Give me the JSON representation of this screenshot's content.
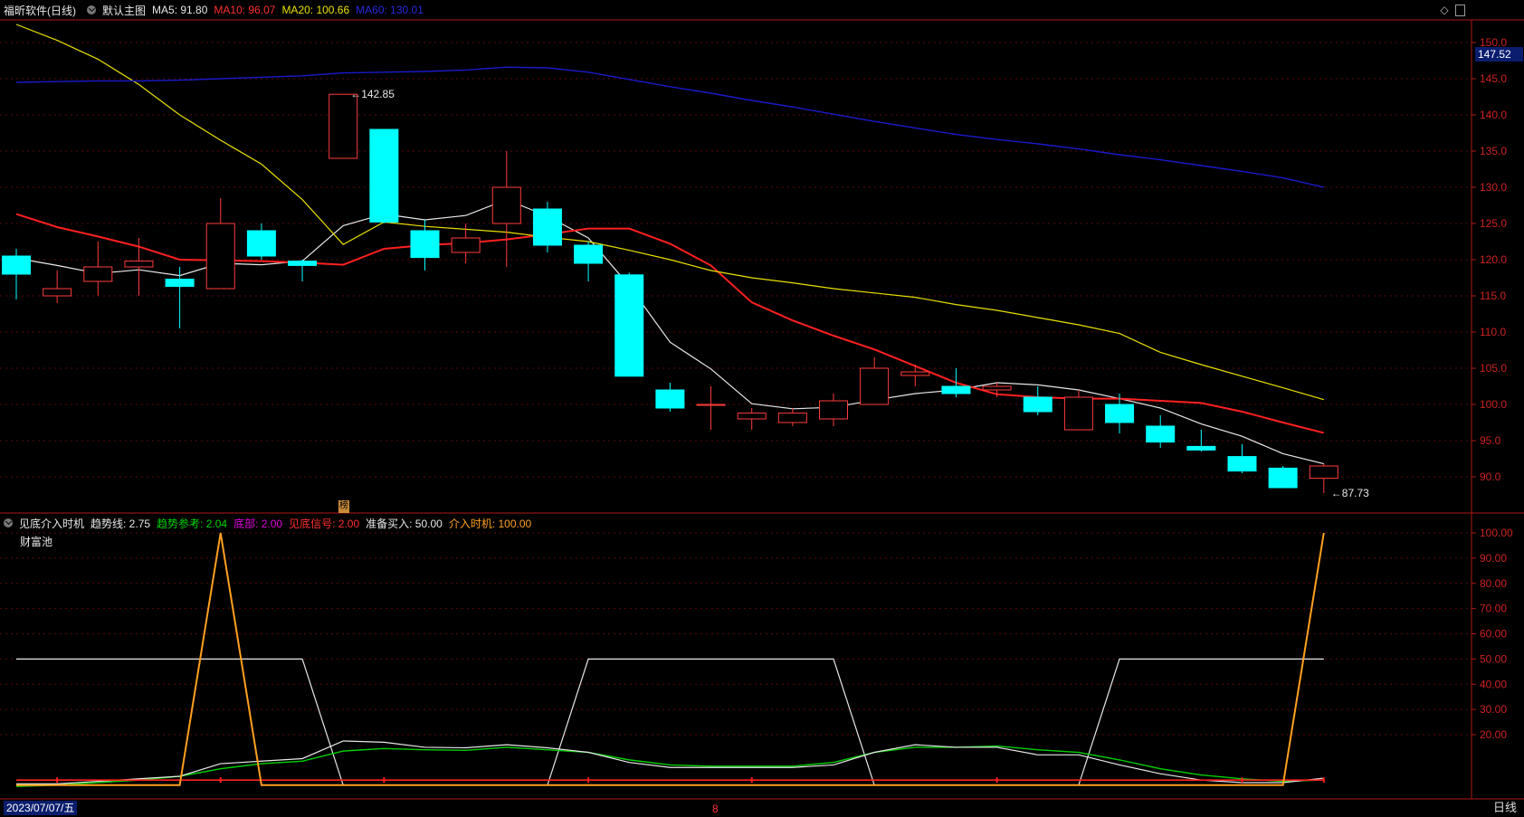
{
  "header": {
    "stock_title": "福昕软件(日线)",
    "main_indicator": "默认主图",
    "ma5": "MA5: 91.80",
    "ma10": "MA10: 96.07",
    "ma20": "MA20: 100.66",
    "ma60": "MA60: 130.01"
  },
  "sub_header": {
    "indicator_name": "见底介入时机",
    "trend": "趋势线: 2.75",
    "trend_ref": "趋势参考: 2.04",
    "bottom": "底部: 2.00",
    "bottom_signal": "见底信号: 2.00",
    "prepare_buy": "准备买入: 50.00",
    "entry_time": "介入时机: 100.00",
    "pool_label": "财富池"
  },
  "price_box": "147.52",
  "date_box": "2023/07/07/五",
  "month_marker": "8",
  "period_label": "日线",
  "marker_char": "榜",
  "colors": {
    "up": "#ff3b3b",
    "down": "#00ffff",
    "ma5": "#e8e8e8",
    "ma10": "#ff2020",
    "ma20": "#e8e000",
    "ma60": "#1a1acc",
    "trend": "#e8e8e8",
    "trend_ref": "#00d000",
    "bottom": "#e000e0",
    "bottom_signal": "#ff2020",
    "prepare_buy": "#e8e8e8",
    "entry": "#ffa020"
  },
  "chart_data": [
    {
      "type": "candlestick",
      "title": "福昕软件(日线)",
      "ylim": [
        86,
        152
      ],
      "y_ticks": [
        "150.0",
        "145.0",
        "140.0",
        "135.0",
        "130.0",
        "125.0",
        "120.0",
        "115.0",
        "110.0",
        "105.0",
        "100.0",
        "95.0",
        "90.0"
      ],
      "annotations": [
        {
          "text": "142.85",
          "index": 8,
          "value": 142.85
        },
        {
          "text": "87.73",
          "index": 32,
          "value": 87.73
        }
      ],
      "candles": [
        {
          "o": 120.5,
          "c": 118.0,
          "h": 121.5,
          "l": 114.5
        },
        {
          "o": 115.0,
          "c": 116.0,
          "h": 118.5,
          "l": 114.0
        },
        {
          "o": 117.0,
          "c": 119.0,
          "h": 122.5,
          "l": 115.0
        },
        {
          "o": 119.0,
          "c": 119.8,
          "h": 123.0,
          "l": 115.0
        },
        {
          "o": 117.3,
          "c": 116.3,
          "h": 119.0,
          "l": 110.5
        },
        {
          "o": 116.0,
          "c": 125.0,
          "h": 128.5,
          "l": 116.0
        },
        {
          "o": 124.0,
          "c": 120.5,
          "h": 125.0,
          "l": 120.0
        },
        {
          "o": 119.8,
          "c": 119.2,
          "h": 120.0,
          "l": 117.0
        },
        {
          "o": 134.0,
          "c": 142.85,
          "h": 142.85,
          "l": 134.0
        },
        {
          "o": 138.0,
          "c": 125.2,
          "h": 138.0,
          "l": 125.0
        },
        {
          "o": 124.0,
          "c": 120.3,
          "h": 125.5,
          "l": 118.5
        },
        {
          "o": 121.0,
          "c": 123.0,
          "h": 125.0,
          "l": 119.5
        },
        {
          "o": 125.0,
          "c": 130.0,
          "h": 135.0,
          "l": 119.0
        },
        {
          "o": 127.0,
          "c": 122.0,
          "h": 128.0,
          "l": 121.0
        },
        {
          "o": 122.0,
          "c": 119.5,
          "h": 122.5,
          "l": 117.0
        },
        {
          "o": 117.9,
          "c": 103.9,
          "h": 118.2,
          "l": 103.9
        },
        {
          "o": 102.0,
          "c": 99.5,
          "h": 103.0,
          "l": 99.0
        },
        {
          "o": 100.0,
          "c": 100.0,
          "h": 102.5,
          "l": 96.5
        },
        {
          "o": 98.0,
          "c": 98.8,
          "h": 99.5,
          "l": 96.5
        },
        {
          "o": 97.5,
          "c": 98.8,
          "h": 99.5,
          "l": 97.0
        },
        {
          "o": 98.0,
          "c": 100.5,
          "h": 101.5,
          "l": 97.0
        },
        {
          "o": 100.0,
          "c": 105.0,
          "h": 106.5,
          "l": 100.0
        },
        {
          "o": 104.0,
          "c": 104.5,
          "h": 105.5,
          "l": 102.5
        },
        {
          "o": 102.5,
          "c": 101.5,
          "h": 105.0,
          "l": 101.0
        },
        {
          "o": 102.0,
          "c": 102.5,
          "h": 103.0,
          "l": 101.0
        },
        {
          "o": 101.0,
          "c": 99.0,
          "h": 102.5,
          "l": 98.5
        },
        {
          "o": 96.5,
          "c": 101.0,
          "h": 102.0,
          "l": 96.5
        },
        {
          "o": 100.0,
          "c": 97.5,
          "h": 101.5,
          "l": 96.0
        },
        {
          "o": 97.0,
          "c": 94.8,
          "h": 98.5,
          "l": 94.0
        },
        {
          "o": 94.2,
          "c": 93.7,
          "h": 96.5,
          "l": 93.5
        },
        {
          "o": 92.8,
          "c": 90.8,
          "h": 94.5,
          "l": 90.5
        },
        {
          "o": 91.2,
          "c": 88.5,
          "h": 91.5,
          "l": 88.5
        },
        {
          "o": 89.8,
          "c": 91.5,
          "h": 91.8,
          "l": 87.73
        }
      ],
      "series": [
        {
          "name": "MA5",
          "values": [
            120.2,
            119.2,
            118.1,
            118.6,
            117.8,
            119.5,
            119.3,
            119.8,
            124.7,
            126.3,
            125.5,
            126.1,
            128.3,
            126.0,
            123.0,
            116.4,
            108.6,
            104.9,
            100.1,
            99.4,
            99.6,
            100.6,
            101.5,
            102.0,
            103.0,
            102.7,
            102.0,
            100.8,
            99.5,
            97.3,
            95.6,
            93.2,
            91.8
          ]
        },
        {
          "name": "MA10",
          "values": [
            126.3,
            124.5,
            123.2,
            121.8,
            120.0,
            119.9,
            119.8,
            119.6,
            119.3,
            121.5,
            122.0,
            122.3,
            122.8,
            123.5,
            124.3,
            124.3,
            122.2,
            119.2,
            114.1,
            111.6,
            109.5,
            107.6,
            105.3,
            103.0,
            101.4,
            101.0,
            100.8,
            100.8,
            100.5,
            100.2,
            99.0,
            97.5,
            96.07
          ]
        },
        {
          "name": "MA20",
          "values": [
            152.5,
            150.3,
            147.7,
            144.2,
            140.0,
            136.5,
            133.2,
            128.3,
            122.1,
            125.2,
            124.6,
            124.2,
            123.8,
            123.1,
            122.5,
            121.3,
            120.0,
            118.5,
            117.5,
            116.8,
            116.0,
            115.4,
            114.8,
            113.8,
            113.0,
            112.0,
            111.0,
            109.8,
            107.2,
            105.5,
            103.9,
            102.3,
            100.66
          ]
        },
        {
          "name": "MA60",
          "values": [
            144.5,
            144.6,
            144.7,
            144.7,
            144.8,
            145.0,
            145.2,
            145.4,
            145.8,
            145.9,
            146.0,
            146.2,
            146.6,
            146.5,
            145.9,
            144.9,
            143.9,
            143.0,
            142.0,
            141.1,
            140.1,
            139.1,
            138.2,
            137.3,
            136.6,
            136.0,
            135.3,
            134.5,
            133.8,
            133.0,
            132.2,
            131.3,
            130.01
          ]
        }
      ]
    },
    {
      "type": "line",
      "title": "见底介入时机",
      "ylim": [
        -3,
        105
      ],
      "y_ticks": [
        "100.00",
        "90.00",
        "80.00",
        "70.00",
        "60.00",
        "50.00",
        "40.00",
        "30.00",
        "20.00"
      ],
      "series": [
        {
          "name": "趋势线",
          "values": [
            0.5,
            0.5,
            1.5,
            2.5,
            3.5,
            8.5,
            9.5,
            10.5,
            17.5,
            17.0,
            15.0,
            14.8,
            16.0,
            14.8,
            13.0,
            9.0,
            7.0,
            7.0,
            7.0,
            7.0,
            8.0,
            13.0,
            16.0,
            15.0,
            15.0,
            12.0,
            12.0,
            8.0,
            4.5,
            2.0,
            1.0,
            1.0,
            2.75
          ]
        },
        {
          "name": "趋势参考",
          "values": [
            -0.5,
            0,
            1.0,
            2.0,
            3.5,
            6.5,
            8.5,
            9.5,
            13.5,
            14.5,
            14.0,
            13.8,
            15.0,
            14.0,
            13.0,
            10.0,
            8.0,
            7.5,
            7.5,
            7.5,
            9.0,
            13.0,
            15.0,
            15.0,
            15.5,
            14.0,
            13.0,
            10.0,
            6.5,
            4.0,
            2.5,
            1.5,
            2.04
          ]
        },
        {
          "name": "底部",
          "values": [
            2,
            2,
            2,
            2,
            2,
            2,
            2,
            2,
            2,
            2,
            2,
            2,
            2,
            2,
            2,
            2,
            2,
            2,
            2,
            2,
            2,
            2,
            2,
            2,
            2,
            2,
            2,
            2,
            2,
            2,
            2,
            2,
            2.0
          ]
        },
        {
          "name": "见底信号",
          "values": [
            2,
            2,
            2,
            2,
            2,
            2,
            2,
            2,
            2,
            2,
            2,
            2,
            2,
            2,
            2,
            2,
            2,
            2,
            2,
            2,
            2,
            2,
            2,
            2,
            2,
            2,
            2,
            2,
            2,
            2,
            2,
            2,
            2.0
          ]
        },
        {
          "name": "准备买入",
          "values": [
            50,
            50,
            50,
            50,
            50,
            50,
            50,
            50,
            0,
            0,
            0,
            0,
            0,
            0,
            50,
            50,
            50,
            50,
            50,
            50,
            50,
            0,
            0,
            0,
            0,
            0,
            0,
            50,
            50,
            50,
            50,
            50,
            50.0
          ]
        },
        {
          "name": "介入时机",
          "values": [
            0,
            0,
            0,
            0,
            0,
            100,
            0,
            0,
            0,
            0,
            0,
            0,
            0,
            0,
            0,
            0,
            0,
            0,
            0,
            0,
            0,
            0,
            0,
            0,
            0,
            0,
            0,
            0,
            0,
            0,
            0,
            0,
            100.0
          ]
        }
      ]
    }
  ]
}
